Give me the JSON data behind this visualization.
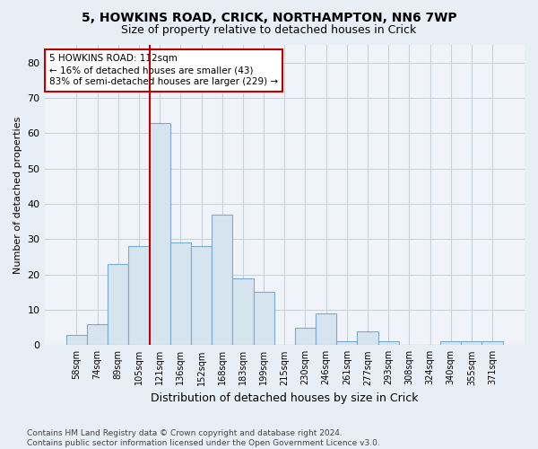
{
  "title1": "5, HOWKINS ROAD, CRICK, NORTHAMPTON, NN6 7WP",
  "title2": "Size of property relative to detached houses in Crick",
  "xlabel": "Distribution of detached houses by size in Crick",
  "ylabel": "Number of detached properties",
  "footer": "Contains HM Land Registry data © Crown copyright and database right 2024.\nContains public sector information licensed under the Open Government Licence v3.0.",
  "bins": [
    "58sqm",
    "74sqm",
    "89sqm",
    "105sqm",
    "121sqm",
    "136sqm",
    "152sqm",
    "168sqm",
    "183sqm",
    "199sqm",
    "215sqm",
    "230sqm",
    "246sqm",
    "261sqm",
    "277sqm",
    "293sqm",
    "308sqm",
    "324sqm",
    "340sqm",
    "355sqm",
    "371sqm"
  ],
  "values": [
    3,
    6,
    23,
    28,
    63,
    29,
    28,
    37,
    19,
    15,
    0,
    5,
    9,
    1,
    4,
    1,
    0,
    0,
    1,
    1,
    1
  ],
  "bar_color": "#d6e4f0",
  "bar_edge_color": "#7aaacc",
  "vline_x_index": 4,
  "vline_color": "#c00000",
  "annotation_text": "5 HOWKINS ROAD: 112sqm\n← 16% of detached houses are smaller (43)\n83% of semi-detached houses are larger (229) →",
  "annotation_box_color": "white",
  "annotation_box_edge_color": "#c00000",
  "ylim": [
    0,
    85
  ],
  "yticks": [
    0,
    10,
    20,
    30,
    40,
    50,
    60,
    70,
    80
  ],
  "bg_color": "#e8eef6",
  "plot_bg_color": "#f0f4fa",
  "grid_color": "#c8d0dc",
  "title1_fontsize": 10,
  "title2_fontsize": 9,
  "xlabel_fontsize": 9,
  "ylabel_fontsize": 8,
  "xtick_fontsize": 7,
  "ytick_fontsize": 8,
  "ann_fontsize": 7.5,
  "footer_fontsize": 6.5
}
